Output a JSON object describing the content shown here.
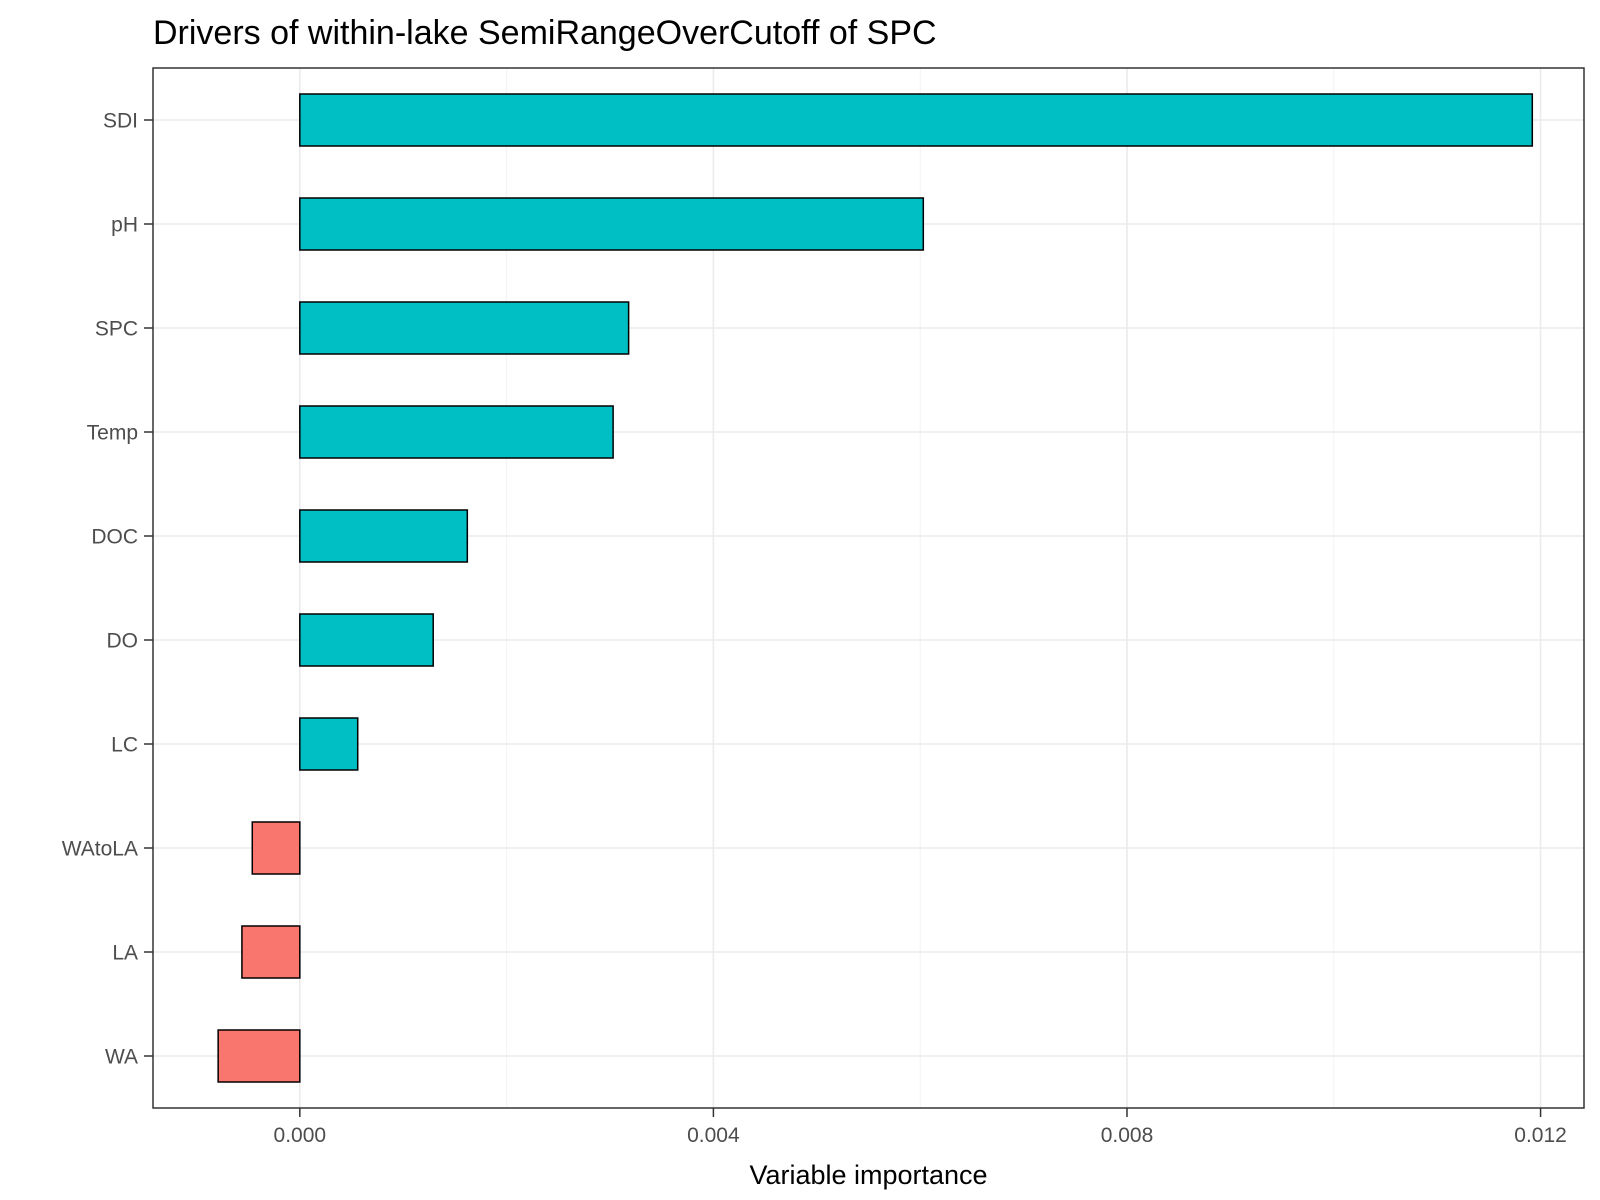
{
  "chart_data": {
    "type": "bar",
    "orientation": "horizontal",
    "title": "Drivers of within-lake SemiRangeOverCutoff of SPC",
    "xlabel": "Variable importance",
    "ylabel": "",
    "categories": [
      "SDI",
      "pH",
      "SPC",
      "Temp",
      "DOC",
      "DO",
      "LC",
      "WAtoLA",
      "LA",
      "WA"
    ],
    "values": [
      0.01192,
      0.00603,
      0.00318,
      0.00303,
      0.00162,
      0.00129,
      0.00056,
      -0.00046,
      -0.00056,
      -0.00079
    ],
    "xlim": [
      -0.00142,
      0.01242
    ],
    "xticks": [
      0.0,
      0.004,
      0.008,
      0.012
    ],
    "xtick_labels": [
      "0.000",
      "0.004",
      "0.008",
      "0.012"
    ],
    "grid": true,
    "legend": "none",
    "colors": {
      "positive": "#00BFC4",
      "negative": "#F8766D"
    }
  }
}
